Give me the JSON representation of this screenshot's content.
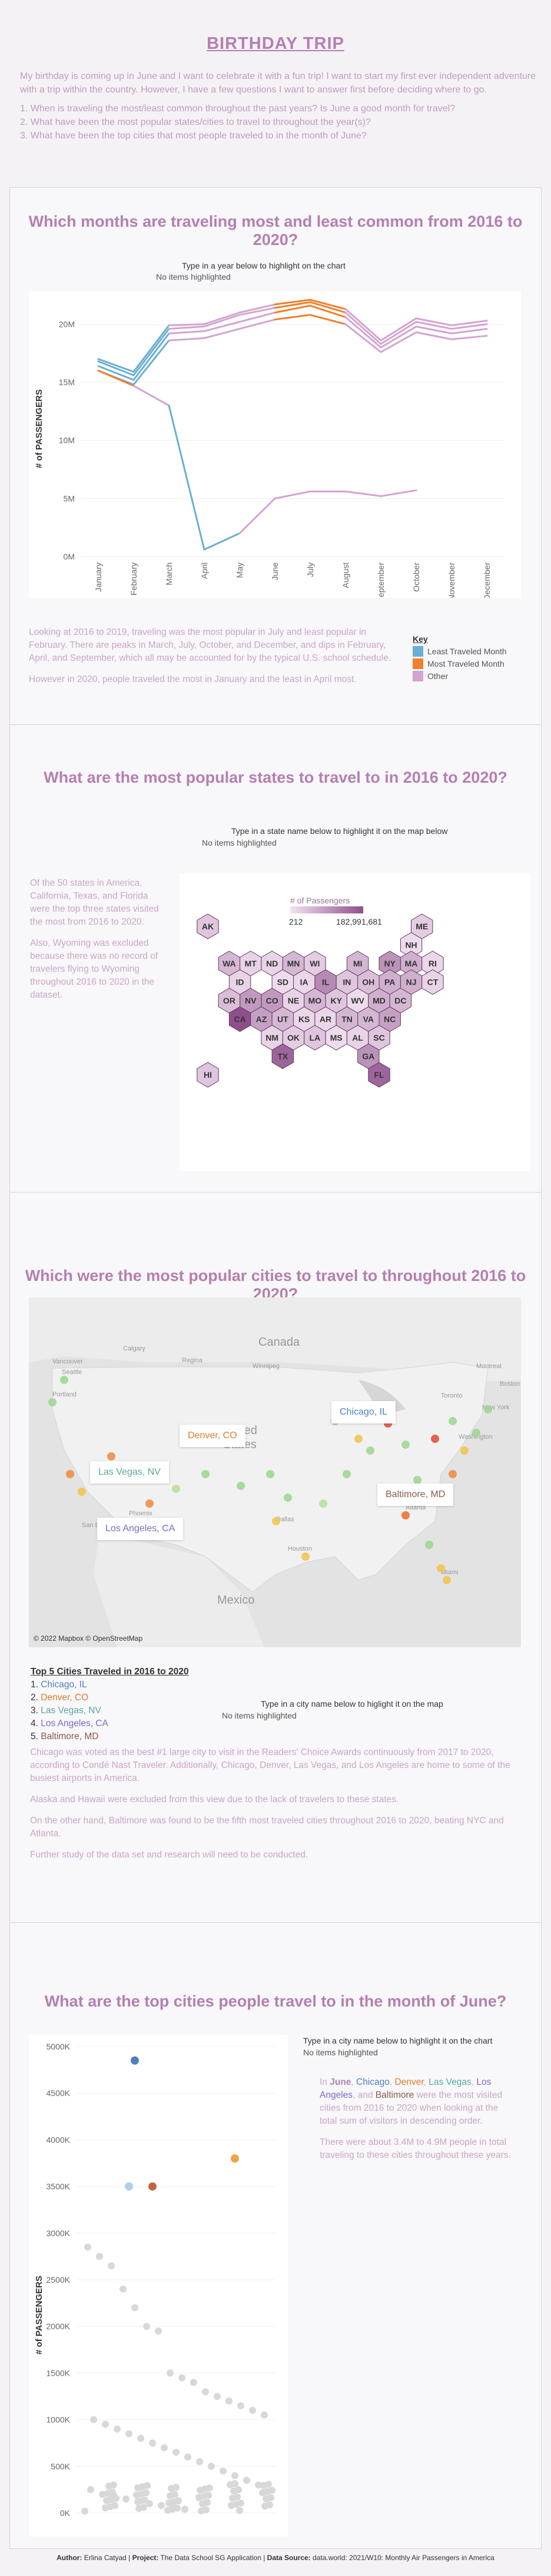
{
  "page": {
    "title": "BIRTHDAY TRIP",
    "intro": [
      "My birthday is coming up in June and I want to celebrate it with a fun trip! I want to start my first ever independent adventure with a trip within the country. However, I have a few questions I want to answer first before deciding where to go.",
      "1. When is traveling the most/least common throughout the past years? Is June a good month for travel?",
      "2. What have been the most popular states/cities to travel to throughout the year(s)?",
      "3. What have been the top  cities that most people traveled to in the month of June?"
    ]
  },
  "section1": {
    "heading": "Which months are traveling most and least common from 2016 to 2020?",
    "hint": "Type in a year below to highlight on the chart",
    "hint_status": "No items highlighted",
    "text": [
      "Looking at 2016 to 2019, traveling was the most popular in July and least popular in February. There are peaks in March, July, October, and December, and dips in February, April, and September, which all may be accounted for by the typical U.S. school schedule.",
      "However in 2020, people traveled the most in January and the least in April most."
    ],
    "legend": {
      "title": "Key",
      "items": [
        {
          "label": "Least Traveled Month",
          "color": "#6aaed6"
        },
        {
          "label": "Most Traveled Month",
          "color": "#f07f2a"
        },
        {
          "label": "Other",
          "color": "#d4a3d0"
        }
      ]
    }
  },
  "chart_data": [
    {
      "type": "line",
      "ylabel": "# of PASSENGERS",
      "y_ticks": [
        "0M",
        "5M",
        "10M",
        "15M",
        "20M"
      ],
      "ylim": [
        0,
        22
      ],
      "categories": [
        "January",
        "February",
        "March",
        "April",
        "May",
        "June",
        "July",
        "August",
        "September",
        "October",
        "November",
        "December"
      ],
      "series": [
        {
          "values": [
            16.4,
            15.2,
            19.2,
            19.4,
            20.2,
            21.0,
            21.6,
            20.6,
            18.0,
            19.8,
            19.2,
            19.6
          ]
        },
        {
          "values": [
            16.8,
            15.6,
            19.6,
            19.8,
            20.8,
            21.4,
            21.9,
            21.0,
            18.3,
            20.2,
            19.6,
            20.0
          ]
        },
        {
          "values": [
            17.0,
            15.9,
            19.9,
            20.0,
            21.0,
            21.7,
            22.1,
            21.3,
            18.6,
            20.5,
            19.9,
            20.3
          ]
        },
        {
          "values": [
            16.0,
            14.8,
            18.6,
            18.8,
            19.6,
            20.4,
            20.8,
            20.0,
            17.6,
            19.3,
            18.7,
            19.0
          ]
        },
        {
          "values": [
            16.0,
            14.7,
            13.0,
            0.6,
            2.0,
            5.0,
            5.6,
            5.6,
            5.2,
            5.7,
            null,
            null
          ]
        }
      ]
    },
    {
      "type": "scatter",
      "ylabel": "# of PASSENGERS",
      "y_ticks": [
        "0K",
        "500K",
        "1000K",
        "1500K",
        "2000K",
        "2500K",
        "3000K",
        "3500K",
        "4000K",
        "4500K",
        "5000K"
      ],
      "ylim": [
        0,
        5000
      ],
      "highlighted_points": [
        {
          "city": "Chicago, IL",
          "value": 4850,
          "color": "#4f7fbf"
        },
        {
          "city": "Denver, CO",
          "value": 3800,
          "color": "#f0a34a"
        },
        {
          "city": "Las Vegas, NV",
          "value": 3500,
          "color": "#a9d1ee"
        },
        {
          "city": "Los Angeles, CA",
          "value": 3500,
          "color": "#c0673f"
        }
      ],
      "other_values": [
        2850,
        2750,
        2650,
        2400,
        2200,
        2000,
        1950,
        1500,
        1450,
        1400,
        1300,
        1250,
        1200,
        1150,
        1100,
        1050,
        1000,
        950,
        900,
        850,
        800,
        750,
        700,
        650,
        600,
        550,
        500,
        450,
        400,
        350,
        300,
        250,
        200,
        180,
        150,
        120,
        100,
        80,
        60,
        40
      ]
    }
  ],
  "section2": {
    "heading": "What are the most popular states to travel to in 2016 to 2020?",
    "hint": "Type in a state name below to highlight it on the map below",
    "hint_status": "No items highlighted",
    "text": [
      "Of the 50 states in America, California, Texas, and Florida were the top three states visited the most from 2016 to 2020.",
      "Also, Wyoming was excluded because there was no record of travelers flying to Wyoming throughout 2016 to 2020 in the dataset."
    ],
    "legend_title": "# of Passengers",
    "legend_min": "212",
    "legend_max": "182,991,681"
  },
  "states": [
    {
      "ab": "AK",
      "c": 0,
      "r": 0,
      "v": 0.2
    },
    {
      "ab": "ME",
      "c": 10,
      "r": 0,
      "v": 0.15
    },
    {
      "ab": "NH",
      "c": 9.5,
      "r": 1,
      "v": 0.05
    },
    {
      "ab": "WA",
      "c": 1,
      "r": 2,
      "v": 0.3
    },
    {
      "ab": "MT",
      "c": 2,
      "r": 2,
      "v": 0.1
    },
    {
      "ab": "ND",
      "c": 3,
      "r": 2,
      "v": 0.1
    },
    {
      "ab": "MN",
      "c": 4,
      "r": 2,
      "v": 0.3
    },
    {
      "ab": "WI",
      "c": 5,
      "r": 2,
      "v": 0.15
    },
    {
      "ab": "MI",
      "c": 7,
      "r": 2,
      "v": 0.3
    },
    {
      "ab": "NY",
      "c": 8.5,
      "r": 2,
      "v": 0.55
    },
    {
      "ab": "MA",
      "c": 9.5,
      "r": 2,
      "v": 0.35
    },
    {
      "ab": "RI",
      "c": 10.5,
      "r": 2,
      "v": 0.08
    },
    {
      "ab": "ID",
      "c": 1.5,
      "r": 3,
      "v": 0.1
    },
    {
      "ab": "SD",
      "c": 3.5,
      "r": 3,
      "v": 0.05
    },
    {
      "ab": "IA",
      "c": 4.5,
      "r": 3,
      "v": 0.08
    },
    {
      "ab": "IL",
      "c": 5.5,
      "r": 3,
      "v": 0.6
    },
    {
      "ab": "IN",
      "c": 6.5,
      "r": 3,
      "v": 0.2
    },
    {
      "ab": "OH",
      "c": 7.5,
      "r": 3,
      "v": 0.25
    },
    {
      "ab": "PA",
      "c": 8.5,
      "r": 3,
      "v": 0.35
    },
    {
      "ab": "NJ",
      "c": 9.5,
      "r": 3,
      "v": 0.35
    },
    {
      "ab": "CT",
      "c": 10.5,
      "r": 3,
      "v": 0.1
    },
    {
      "ab": "OR",
      "c": 1,
      "r": 4,
      "v": 0.25
    },
    {
      "ab": "NV",
      "c": 2,
      "r": 4,
      "v": 0.5
    },
    {
      "ab": "CO",
      "c": 3,
      "r": 4,
      "v": 0.5
    },
    {
      "ab": "NE",
      "c": 4,
      "r": 4,
      "v": 0.1
    },
    {
      "ab": "MO",
      "c": 5,
      "r": 4,
      "v": 0.3
    },
    {
      "ab": "KY",
      "c": 6,
      "r": 4,
      "v": 0.2
    },
    {
      "ab": "WV",
      "c": 7,
      "r": 4,
      "v": 0.05
    },
    {
      "ab": "MD",
      "c": 8,
      "r": 4,
      "v": 0.35
    },
    {
      "ab": "DC",
      "c": 9,
      "r": 4,
      "v": 0.3
    },
    {
      "ab": "CA",
      "c": 1.5,
      "r": 5,
      "v": 1.0
    },
    {
      "ab": "AZ",
      "c": 2.5,
      "r": 5,
      "v": 0.45
    },
    {
      "ab": "UT",
      "c": 3.5,
      "r": 5,
      "v": 0.3
    },
    {
      "ab": "KS",
      "c": 4.5,
      "r": 5,
      "v": 0.08
    },
    {
      "ab": "AR",
      "c": 5.5,
      "r": 5,
      "v": 0.08
    },
    {
      "ab": "TN",
      "c": 6.5,
      "r": 5,
      "v": 0.3
    },
    {
      "ab": "VA",
      "c": 7.5,
      "r": 5,
      "v": 0.3
    },
    {
      "ab": "NC",
      "c": 8.5,
      "r": 5,
      "v": 0.45
    },
    {
      "ab": "NM",
      "c": 3,
      "r": 6,
      "v": 0.1
    },
    {
      "ab": "OK",
      "c": 4,
      "r": 6,
      "v": 0.15
    },
    {
      "ab": "LA",
      "c": 5,
      "r": 6,
      "v": 0.2
    },
    {
      "ab": "MS",
      "c": 6,
      "r": 6,
      "v": 0.05
    },
    {
      "ab": "AL",
      "c": 7,
      "r": 6,
      "v": 0.1
    },
    {
      "ab": "SC",
      "c": 8,
      "r": 6,
      "v": 0.2
    },
    {
      "ab": "TX",
      "c": 3.5,
      "r": 7,
      "v": 0.85
    },
    {
      "ab": "GA",
      "c": 7.5,
      "r": 7,
      "v": 0.55
    },
    {
      "ab": "HI",
      "c": 0,
      "r": 8,
      "v": 0.2
    },
    {
      "ab": "FL",
      "c": 8,
      "r": 8,
      "v": 0.85
    }
  ],
  "section3": {
    "heading": "Which were the most popular cities to travel to throughout 2016 to 2020?",
    "map_attr": "© 2022 Mapbox © OpenStreetMap",
    "map_places": {
      "canada": "Canada",
      "united": "United",
      "states": "States",
      "mexico": "Mexico",
      "vancouver": "Vancouver",
      "seattle": "Seattle",
      "portland": "Portland",
      "calgary": "Calgary",
      "regina": "Regina",
      "winnipeg": "Winnipeg",
      "toronto": "Toronto",
      "montreal": "Montreal",
      "boston": "Boston",
      "new_york": "New York",
      "washington": "Washington",
      "atlanta": "Atlanta",
      "miami": "Miami",
      "dallas": "Dallas",
      "houston": "Houston",
      "phoenix": "Phoenix",
      "san_diego": "San Diego",
      "denver_city": "Denver"
    },
    "map_labels": [
      {
        "text": "Chicago, IL",
        "color": "#4f7fbf"
      },
      {
        "text": "Denver, CO",
        "color": "#e07b2b"
      },
      {
        "text": "Las Vegas, NV",
        "color": "#5ba8a0"
      },
      {
        "text": "Baltimore, MD",
        "color": "#8b5a4a"
      },
      {
        "text": "Los Angeles, CA",
        "color": "#7c6ac4"
      }
    ],
    "top5_title": "Top 5 Cities Traveled in 2016 to 2020",
    "top5": [
      {
        "n": "1. ",
        "city": "Chicago, IL",
        "color": "#4f7fbf"
      },
      {
        "n": "2. ",
        "city": "Denver, CO",
        "color": "#e07b2b"
      },
      {
        "n": "3. ",
        "city": "Las Vegas, NV",
        "color": "#5ba8a0"
      },
      {
        "n": "4. ",
        "city": "Los Angeles, CA",
        "color": "#7c6ac4"
      },
      {
        "n": "5. ",
        "city": "Baltimore, MD",
        "color": "#8b5a4a"
      }
    ],
    "hint": "Type in a city name below to higlight it on the map",
    "hint_status": "No items highlighted",
    "text": [
      "Chicago was voted as the best #1 large city to visit in the Readers' Choice Awards continuously from 2017 to 2020, according to Condé Nast Traveler. Additionally, Chicago, Denver, Las Vegas, and Los Angeles  are home to some of the busiest airports in America.",
      "Alaska and Hawaii were excluded from this view due to the lack of travelers to these states.",
      "On the other hand, Baltimore was found to be the fifth most traveled cities throughout 2016 to 2020, beating NYC and Atlanta.",
      "Further study of the data set and research will need to be conducted."
    ]
  },
  "section4": {
    "heading": "What are the top cities people travel to in the month of June?",
    "hint": "Type in a city name below to highlight it on the chart",
    "hint_status": "No items highlighted",
    "para1": {
      "pre": "In ",
      "june": "June",
      "c1": "Chicago",
      "c2": "Denver",
      "c3": "Las Vegas",
      "c4": "Los Angeles",
      "c5": "Baltimore",
      "comma": ", ",
      "and": ", and ",
      "post": " were the most visited cities from 2016 to 2020 when looking at the total sum of visitors in descending order."
    },
    "para2": "There were about 3.4M to 4.9M people in total traveling to these cities throughout these years."
  },
  "footer": {
    "author_label": "Author:",
    "author": " Erlina Catyad | ",
    "project_label": "Project:",
    "project": " The Data School SG Application | ",
    "source_label": "Data Source:",
    "source": " data.world: 2021/W10: Monthly Air Passengers in America"
  }
}
